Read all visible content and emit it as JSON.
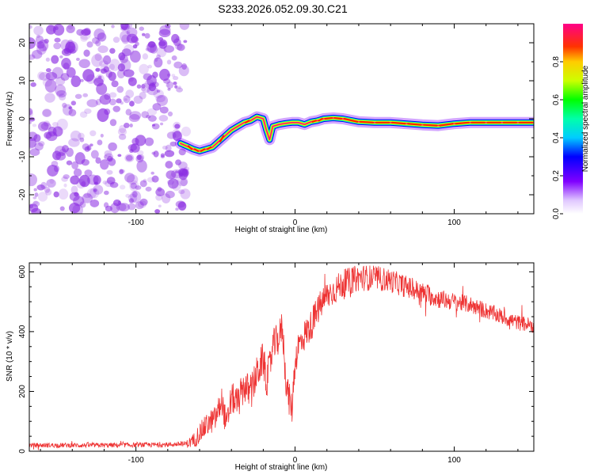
{
  "title": "S233.2026.052.09.30.C21",
  "chart_data": [
    {
      "type": "heatmap",
      "name": "spectrogram",
      "xlabel": "Height of straight line (km)",
      "ylabel": "Frequency (Hz)",
      "xlim": [
        -167,
        150
      ],
      "ylim": [
        -25,
        25
      ],
      "xticks": [
        -100,
        0,
        100
      ],
      "yticks": [
        -20,
        -10,
        0,
        10,
        20
      ],
      "noise_region_x": [
        -167,
        -70
      ],
      "ridge": {
        "x": [
          -72,
          -68,
          -64,
          -60,
          -56,
          -52,
          -48,
          -44,
          -40,
          -36,
          -32,
          -28,
          -24,
          -20,
          -18,
          -16,
          -14,
          -10,
          -6,
          -2,
          2,
          6,
          10,
          14,
          18,
          24,
          30,
          40,
          50,
          60,
          70,
          80,
          90,
          100,
          110,
          120,
          130,
          140,
          150
        ],
        "y": [
          -6.5,
          -7.2,
          -8.0,
          -8.5,
          -8.0,
          -7.5,
          -6.0,
          -4.5,
          -3.0,
          -2.0,
          -1.0,
          -0.5,
          0.5,
          0.0,
          -3.0,
          -5.5,
          -2.0,
          -1.5,
          -1.2,
          -1.0,
          -1.0,
          -1.5,
          -0.8,
          -0.5,
          0.0,
          0.2,
          0.0,
          -0.8,
          -1.0,
          -1.0,
          -1.3,
          -1.6,
          -1.8,
          -1.3,
          -1.0,
          -1.0,
          -1.0,
          -1.0,
          -1.0
        ],
        "amplitude": [
          0.7,
          0.85,
          0.9,
          0.95,
          0.9,
          0.8,
          0.85,
          0.9,
          0.75,
          0.8,
          0.85,
          0.9,
          0.75,
          0.6,
          0.5,
          0.45,
          0.55,
          0.6,
          0.7,
          0.8,
          0.85,
          0.8,
          0.85,
          0.9,
          0.9,
          0.95,
          0.9,
          0.85,
          0.95,
          0.95,
          0.9,
          0.95,
          0.95,
          0.9,
          0.95,
          0.95,
          0.95,
          0.95,
          0.95
        ]
      },
      "colorbar": {
        "label": "Normalized spectral amplitude",
        "range": [
          0.0,
          1.0
        ],
        "ticks": [
          0.0,
          0.2,
          0.4,
          0.6,
          0.8
        ]
      }
    },
    {
      "type": "line",
      "name": "snr",
      "xlabel": "Height of straight line (km)",
      "ylabel": "SNR (10 * v/v)",
      "xlim": [
        -167,
        150
      ],
      "ylim": [
        0,
        630
      ],
      "xticks": [
        -100,
        0,
        100
      ],
      "yticks": [
        0,
        200,
        400,
        600
      ],
      "color": "#ee3333",
      "envelope": {
        "x": [
          -167,
          -120,
          -80,
          -68,
          -64,
          -60,
          -55,
          -50,
          -46,
          -43,
          -40,
          -36,
          -32,
          -28,
          -24,
          -20,
          -18,
          -16,
          -14,
          -10,
          -8,
          -6,
          -4,
          -2,
          0,
          2,
          5,
          10,
          15,
          20,
          25,
          30,
          40,
          50,
          60,
          70,
          80,
          90,
          100,
          110,
          120,
          130,
          140,
          150
        ],
        "y": [
          20,
          20,
          22,
          25,
          35,
          60,
          90,
          110,
          170,
          80,
          180,
          160,
          220,
          190,
          260,
          310,
          230,
          280,
          350,
          380,
          420,
          250,
          180,
          140,
          300,
          350,
          380,
          420,
          480,
          520,
          540,
          560,
          580,
          580,
          570,
          550,
          530,
          510,
          500,
          490,
          470,
          450,
          430,
          420
        ]
      },
      "noise_amplitude": {
        "x": [
          -167,
          -70,
          -60,
          -30,
          0,
          40,
          100,
          150
        ],
        "y": [
          8,
          8,
          35,
          60,
          55,
          45,
          30,
          25
        ]
      }
    }
  ],
  "colors": {
    "noise": "#8a2be2",
    "trace": "#ee3333"
  }
}
